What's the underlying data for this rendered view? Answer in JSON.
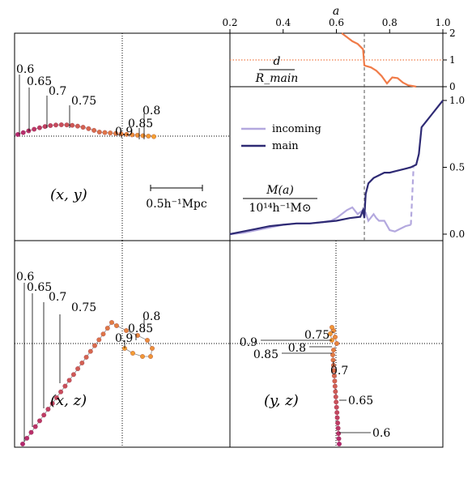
{
  "chart_data": [
    {
      "type": "line",
      "panel": "separation",
      "xlabel": "a",
      "ylabel": "d / R_main",
      "xlim": [
        0.2,
        1.0
      ],
      "ylim": [
        0,
        2
      ],
      "x_ticks": [
        "0.2",
        "0.4",
        "0.6",
        "0.8",
        "1.0"
      ],
      "y_ticks": [
        "0",
        "1",
        "2"
      ],
      "label_num": "d",
      "label_den": "R_main",
      "reference_line_y": 1,
      "vline_a": 0.705,
      "series": [
        {
          "color": "#f07b48",
          "x": [
            0.62,
            0.64,
            0.66,
            0.68,
            0.7,
            0.705,
            0.71,
            0.73,
            0.75,
            0.77,
            0.79,
            0.81,
            0.83,
            0.85,
            0.87,
            0.89,
            0.9
          ],
          "y": [
            2.0,
            1.85,
            1.7,
            1.6,
            1.4,
            0.8,
            0.78,
            0.72,
            0.6,
            0.4,
            0.12,
            0.35,
            0.32,
            0.15,
            0.05,
            0.02,
            0.0
          ]
        }
      ]
    },
    {
      "type": "line",
      "panel": "mass",
      "xlabel": "a",
      "label_num": "M(a)",
      "label_den": "10¹⁴h⁻¹M⊙",
      "xlim": [
        0.2,
        1.0
      ],
      "ylim": [
        0,
        1.0
      ],
      "y_ticks": [
        "0.0",
        "0.5",
        "1.0"
      ],
      "series": [
        {
          "name": "incoming",
          "color": "#b3a8de",
          "x": [
            0.2,
            0.25,
            0.3,
            0.35,
            0.4,
            0.45,
            0.5,
            0.55,
            0.58,
            0.6,
            0.62,
            0.64,
            0.66,
            0.68,
            0.7,
            0.71,
            0.72,
            0.74,
            0.75,
            0.76,
            0.78,
            0.8,
            0.82,
            0.84,
            0.86,
            0.88
          ],
          "y": [
            0.0,
            0.01,
            0.03,
            0.05,
            0.07,
            0.08,
            0.08,
            0.09,
            0.1,
            0.12,
            0.15,
            0.18,
            0.2,
            0.15,
            0.18,
            0.16,
            0.1,
            0.15,
            0.12,
            0.1,
            0.1,
            0.03,
            0.02,
            0.04,
            0.06,
            0.07
          ],
          "dashed_x": [
            0.88,
            0.89
          ],
          "dashed_y": [
            0.07,
            0.5
          ]
        },
        {
          "name": "main",
          "color": "#2e2a74",
          "x": [
            0.2,
            0.25,
            0.3,
            0.35,
            0.4,
            0.45,
            0.5,
            0.55,
            0.6,
            0.65,
            0.69,
            0.7,
            0.705,
            0.71,
            0.72,
            0.74,
            0.76,
            0.78,
            0.8,
            0.82,
            0.84,
            0.86,
            0.88,
            0.9,
            0.91,
            0.92,
            0.94,
            0.96,
            0.98,
            1.0
          ],
          "y": [
            0.0,
            0.02,
            0.04,
            0.06,
            0.07,
            0.08,
            0.08,
            0.09,
            0.1,
            0.12,
            0.13,
            0.18,
            0.12,
            0.3,
            0.38,
            0.42,
            0.44,
            0.46,
            0.46,
            0.47,
            0.48,
            0.49,
            0.5,
            0.52,
            0.6,
            0.8,
            0.85,
            0.9,
            0.95,
            1.0
          ]
        }
      ]
    },
    {
      "type": "scatter",
      "panel": "(x, y)",
      "label": "(x, y)",
      "scale_bar_label": "0.5h⁻¹Mpc",
      "annotations": [
        "0.6",
        "0.65",
        "0.7",
        "0.75",
        "0.9",
        "0.85",
        "0.8"
      ]
    },
    {
      "type": "scatter",
      "panel": "(x, z)",
      "label": "(x, z)",
      "annotations": [
        "0.6",
        "0.65",
        "0.7",
        "0.75",
        "0.9",
        "0.85",
        "0.8"
      ]
    },
    {
      "type": "scatter",
      "panel": "(y, z)",
      "label": "(y, z)",
      "annotations": [
        "0.9",
        "0.75",
        "0.8",
        "0.85",
        "0.7",
        "0.65",
        "0.6"
      ]
    }
  ]
}
